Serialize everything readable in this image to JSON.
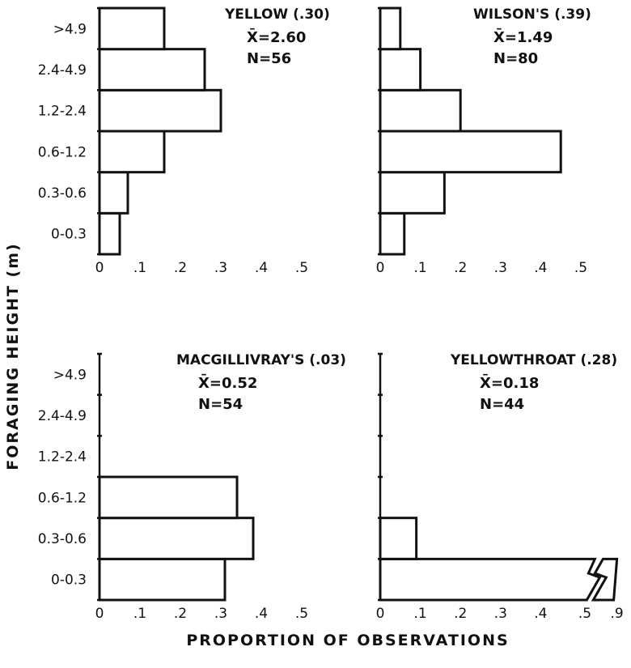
{
  "chart_data": [
    {
      "type": "bar",
      "orientation": "horizontal",
      "title": "YELLOW (.30)",
      "mean_label": "X̄=2.60",
      "n_label": "N=56",
      "categories": [
        "0-0.3",
        "0.3-0.6",
        "0.6-1.2",
        "1.2-2.4",
        "2.4-4.9",
        ">4.9"
      ],
      "values": [
        0.05,
        0.07,
        0.16,
        0.3,
        0.26,
        0.16
      ],
      "xticks": [
        "0",
        ".1",
        ".2",
        ".3",
        ".4",
        ".5"
      ],
      "xlim": [
        0,
        0.5
      ],
      "show_category_labels": true
    },
    {
      "type": "bar",
      "orientation": "horizontal",
      "title": "WILSON'S (.39)",
      "mean_label": "X̄=1.49",
      "n_label": "N=80",
      "categories": [
        "0-0.3",
        "0.3-0.6",
        "0.6-1.2",
        "1.2-2.4",
        "2.4-4.9",
        ">4.9"
      ],
      "values": [
        0.06,
        0.16,
        0.45,
        0.2,
        0.1,
        0.05
      ],
      "xticks": [
        "0",
        ".1",
        ".2",
        ".3",
        ".4",
        ".5"
      ],
      "xlim": [
        0,
        0.5
      ],
      "show_category_labels": false
    },
    {
      "type": "bar",
      "orientation": "horizontal",
      "title": "MACGILLIVRAY'S (.03)",
      "mean_label": "X̄=0.52",
      "n_label": "N=54",
      "categories": [
        "0-0.3",
        "0.3-0.6",
        "0.6-1.2",
        "1.2-2.4",
        "2.4-4.9",
        ">4.9"
      ],
      "values": [
        0.31,
        0.38,
        0.34,
        0,
        0,
        0
      ],
      "xticks": [
        "0",
        ".1",
        ".2",
        ".3",
        ".4",
        ".5"
      ],
      "xlim": [
        0,
        0.5
      ],
      "show_category_labels": true
    },
    {
      "type": "bar",
      "orientation": "horizontal",
      "title": "YELLOWTHROAT (.28)",
      "mean_label": "X̄=0.18",
      "n_label": "N=44",
      "categories": [
        "0-0.3",
        "0.3-0.6",
        "0.6-1.2",
        "1.2-2.4",
        "2.4-4.9",
        ">4.9"
      ],
      "values": [
        0.9,
        0.09,
        0,
        0,
        0,
        0
      ],
      "xticks": [
        "0",
        ".1",
        ".2",
        ".3",
        ".4",
        ".5",
        ".9"
      ],
      "xlim": [
        0,
        0.5
      ],
      "axis_break": true,
      "show_category_labels": false
    }
  ],
  "ylabel": "FORAGING HEIGHT (m)",
  "xlabel": "PROPORTION OF OBSERVATIONS"
}
